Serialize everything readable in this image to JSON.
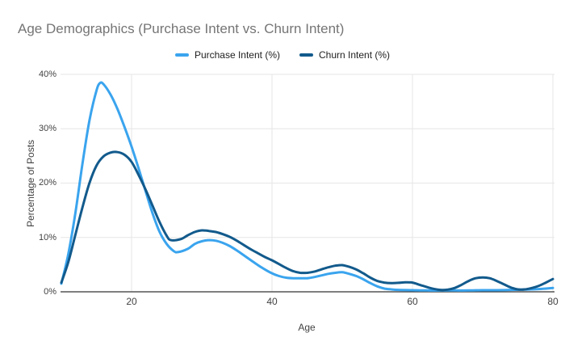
{
  "page": {
    "background": "#ffffff"
  },
  "chart_data": {
    "type": "line",
    "title": "Age Demographics (Purchase Intent vs. Churn Intent)",
    "xlabel": "Age",
    "ylabel": "Percentage of Posts",
    "xlim": [
      10,
      80
    ],
    "ylim": [
      0,
      40
    ],
    "grid": true,
    "legend_position": "top-center",
    "line_style": "smooth",
    "x_ticks": [
      20,
      40,
      60,
      80
    ],
    "x_tick_labels": [
      "20",
      "40",
      "60",
      "80"
    ],
    "y_ticks": [
      0,
      10,
      20,
      30,
      40
    ],
    "y_tick_labels": [
      "0%",
      "10%",
      "20%",
      "30%",
      "40%"
    ],
    "colors": {
      "grid": "#e6e6e6",
      "axis_line": "#333333",
      "title_text": "#757575",
      "tick_text": "#424242",
      "legend_text": "#212121"
    },
    "series": [
      {
        "name": "Purchase Intent (%)",
        "color": "#3aa4ee",
        "points": [
          [
            10,
            1.5
          ],
          [
            11,
            7
          ],
          [
            12,
            14.5
          ],
          [
            13,
            23.5
          ],
          [
            14,
            31.5
          ],
          [
            15,
            37
          ],
          [
            15.5,
            38.4
          ],
          [
            16,
            38.2
          ],
          [
            17,
            36.3
          ],
          [
            18,
            33.6
          ],
          [
            19,
            30.3
          ],
          [
            20,
            26.7
          ],
          [
            21,
            22.7
          ],
          [
            22,
            18.5
          ],
          [
            23,
            14.4
          ],
          [
            24,
            11
          ],
          [
            25,
            8.8
          ],
          [
            26,
            7.5
          ],
          [
            26.6,
            7.3
          ],
          [
            28,
            7.9
          ],
          [
            29,
            8.8
          ],
          [
            30,
            9.3
          ],
          [
            31,
            9.5
          ],
          [
            32,
            9.4
          ],
          [
            33,
            9
          ],
          [
            34,
            8.4
          ],
          [
            35,
            7.6
          ],
          [
            36,
            6.7
          ],
          [
            37,
            5.8
          ],
          [
            38,
            4.9
          ],
          [
            39,
            4.1
          ],
          [
            40,
            3.4
          ],
          [
            41,
            2.9
          ],
          [
            42,
            2.6
          ],
          [
            43,
            2.5
          ],
          [
            44,
            2.5
          ],
          [
            45,
            2.5
          ],
          [
            46,
            2.7
          ],
          [
            47,
            3
          ],
          [
            48,
            3.3
          ],
          [
            49,
            3.5
          ],
          [
            50,
            3.6
          ],
          [
            51,
            3.3
          ],
          [
            52,
            2.9
          ],
          [
            53,
            2.3
          ],
          [
            54,
            1.6
          ],
          [
            55,
            1
          ],
          [
            56,
            0.6
          ],
          [
            57,
            0.45
          ],
          [
            58,
            0.35
          ],
          [
            60,
            0.3
          ],
          [
            62,
            0.25
          ],
          [
            64,
            0.25
          ],
          [
            66,
            0.25
          ],
          [
            68,
            0.25
          ],
          [
            70,
            0.3
          ],
          [
            72,
            0.3
          ],
          [
            74,
            0.35
          ],
          [
            76,
            0.4
          ],
          [
            78,
            0.5
          ],
          [
            80,
            0.7
          ]
        ]
      },
      {
        "name": "Churn Intent (%)",
        "color": "#125a8c",
        "points": [
          [
            10,
            1.7
          ],
          [
            11,
            5.5
          ],
          [
            12,
            10.5
          ],
          [
            13,
            15.5
          ],
          [
            14,
            20
          ],
          [
            15,
            23.2
          ],
          [
            16,
            24.9
          ],
          [
            17,
            25.6
          ],
          [
            18,
            25.7
          ],
          [
            19,
            25.2
          ],
          [
            20,
            23.9
          ],
          [
            21,
            21.5
          ],
          [
            22,
            18.8
          ],
          [
            23,
            15.8
          ],
          [
            24,
            12.8
          ],
          [
            25,
            10.3
          ],
          [
            25.6,
            9.5
          ],
          [
            27,
            9.7
          ],
          [
            28,
            10.4
          ],
          [
            29,
            11
          ],
          [
            30,
            11.3
          ],
          [
            31,
            11.2
          ],
          [
            32,
            11
          ],
          [
            33,
            10.6
          ],
          [
            34,
            10.1
          ],
          [
            35,
            9.4
          ],
          [
            36,
            8.6
          ],
          [
            37,
            7.8
          ],
          [
            38,
            7.1
          ],
          [
            39,
            6.4
          ],
          [
            40,
            5.8
          ],
          [
            41,
            5.1
          ],
          [
            42,
            4.4
          ],
          [
            43,
            3.8
          ],
          [
            44,
            3.5
          ],
          [
            45,
            3.5
          ],
          [
            46,
            3.7
          ],
          [
            47,
            4.1
          ],
          [
            48,
            4.5
          ],
          [
            49,
            4.8
          ],
          [
            50,
            4.9
          ],
          [
            51,
            4.6
          ],
          [
            52,
            4.1
          ],
          [
            53,
            3.4
          ],
          [
            54,
            2.6
          ],
          [
            55,
            2
          ],
          [
            56,
            1.7
          ],
          [
            57,
            1.6
          ],
          [
            58,
            1.65
          ],
          [
            59,
            1.75
          ],
          [
            60,
            1.7
          ],
          [
            61,
            1.3
          ],
          [
            62,
            0.9
          ],
          [
            63,
            0.55
          ],
          [
            64,
            0.35
          ],
          [
            65,
            0.4
          ],
          [
            66,
            0.7
          ],
          [
            67,
            1.3
          ],
          [
            68,
            2
          ],
          [
            69,
            2.5
          ],
          [
            70,
            2.65
          ],
          [
            71,
            2.5
          ],
          [
            72,
            2
          ],
          [
            73,
            1.4
          ],
          [
            74,
            0.8
          ],
          [
            75,
            0.45
          ],
          [
            76,
            0.45
          ],
          [
            77,
            0.7
          ],
          [
            78,
            1.1
          ],
          [
            79,
            1.7
          ],
          [
            80,
            2.35
          ]
        ]
      }
    ]
  }
}
